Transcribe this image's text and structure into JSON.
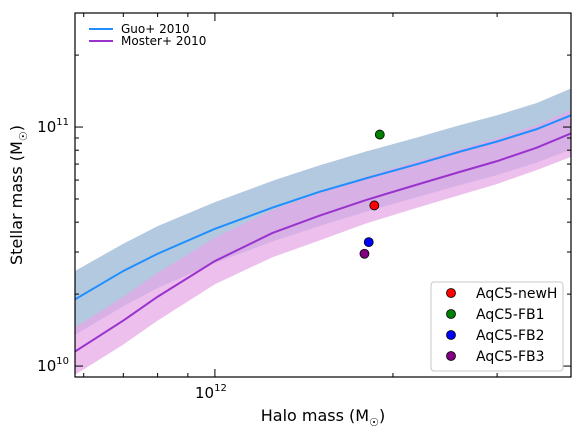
{
  "chart_data": {
    "type": "line",
    "xlabel": "Halo mass (M",
    "ylabel": "Stellar mass (M",
    "label_subscript": "☉",
    "x_scale": "log",
    "y_scale": "log",
    "xlim": [
      580000000000.0,
      4000000000000.0
    ],
    "ylim": [
      9000000000.0,
      300000000000.0
    ],
    "grid": false,
    "x_ticks": [
      {
        "value": 1000000000000.0,
        "label": "10",
        "exp": "12"
      }
    ],
    "y_ticks": [
      {
        "value": 10000000000.0,
        "label": "10",
        "exp": "10"
      },
      {
        "value": 100000000000.0,
        "label": "10",
        "exp": "11"
      }
    ],
    "x_minor_ticks": [
      600000000000.0,
      700000000000.0,
      800000000000.0,
      900000000000.0,
      2000000000000.0,
      3000000000000.0,
      4000000000000.0
    ],
    "y_minor_ticks": [
      20000000000.0,
      30000000000.0,
      40000000000.0,
      50000000000.0,
      60000000000.0,
      70000000000.0,
      80000000000.0,
      90000000000.0,
      200000000000.0,
      300000000000.0
    ],
    "series": [
      {
        "name": "Guo+ 2010",
        "color": "#1f8fff",
        "band_color": "#b3c9e0",
        "x": [
          580000000000.0,
          700000000000.0,
          800000000000.0,
          1000000000000.0,
          1250000000000.0,
          1500000000000.0,
          1800000000000.0,
          2200000000000.0,
          2600000000000.0,
          3000000000000.0,
          3500000000000.0,
          4000000000000.0
        ],
        "y": [
          19000000000.0,
          25000000000.0,
          29500000000.0,
          37500000000.0,
          46000000000.0,
          53500000000.0,
          61000000000.0,
          70000000000.0,
          79000000000.0,
          87000000000.0,
          98000000000.0,
          112000000000.0
        ],
        "lower": [
          13500000000.0,
          17800000000.0,
          21200000000.0,
          27000000000.0,
          33200000000.0,
          38500000000.0,
          44200000000.0,
          51000000000.0,
          57200000000.0,
          63000000000.0,
          71000000000.0,
          80500000000.0
        ],
        "upper": [
          25000000000.0,
          32500000000.0,
          38500000000.0,
          48500000000.0,
          59500000000.0,
          69000000000.0,
          79000000000.0,
          90500000000.0,
          102000000000.0,
          112000000000.0,
          126000000000.0,
          145000000000.0
        ]
      },
      {
        "name": "Moster+ 2010",
        "color": "#9a32cd",
        "band_color": "#e4a6e6",
        "x": [
          580000000000.0,
          700000000000.0,
          800000000000.0,
          1000000000000.0,
          1250000000000.0,
          1500000000000.0,
          1800000000000.0,
          2200000000000.0,
          2600000000000.0,
          3000000000000.0,
          3500000000000.0,
          4000000000000.0
        ],
        "y": [
          11500000000.0,
          15500000000.0,
          19500000000.0,
          27500000000.0,
          36000000000.0,
          42500000000.0,
          49500000000.0,
          57500000000.0,
          65000000000.0,
          72000000000.0,
          82000000000.0,
          94000000000.0
        ],
        "lower": [
          9200000000.0,
          12300000000.0,
          15500000000.0,
          22000000000.0,
          28500000000.0,
          33500000000.0,
          39500000000.0,
          46000000000.0,
          52000000000.0,
          57800000000.0,
          66000000000.0,
          75000000000.0
        ],
        "upper": [
          14500000000.0,
          19500000000.0,
          24500000000.0,
          34500000000.0,
          45000000000.0,
          53000000000.0,
          62000000000.0,
          72000000000.0,
          81000000000.0,
          90000000000.0,
          102000000000.0,
          118000000000.0
        ]
      }
    ],
    "points": [
      {
        "name": "AqC5-newH",
        "x": 1860000000000.0,
        "y": 47000000000.0,
        "color": "#ff0000"
      },
      {
        "name": "AqC5-FB1",
        "x": 1900000000000.0,
        "y": 93000000000.0,
        "color": "#008000"
      },
      {
        "name": "AqC5-FB2",
        "x": 1820000000000.0,
        "y": 33000000000.0,
        "color": "#0000ff"
      },
      {
        "name": "AqC5-FB3",
        "x": 1790000000000.0,
        "y": 29500000000.0,
        "color": "#800080"
      }
    ],
    "line_legend_position": "upper-left",
    "point_legend_position": "lower-right"
  }
}
